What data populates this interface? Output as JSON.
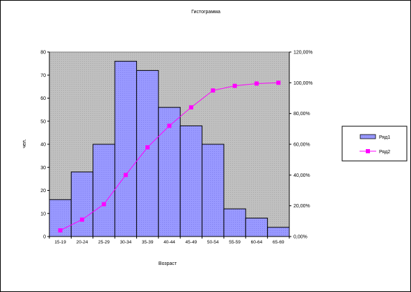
{
  "chart_data": {
    "type": "bar",
    "title": "Гистограмма",
    "xlabel": "Возраст",
    "ylabel": "чел.",
    "categories": [
      "15-19",
      "20-24",
      "25-29",
      "30-34",
      "35-39",
      "40-44",
      "45-49",
      "50-54",
      "55-59",
      "60-64",
      "65-69"
    ],
    "ylim": [
      0,
      80
    ],
    "yticks": [
      "0",
      "10",
      "20",
      "30",
      "40",
      "50",
      "60",
      "70",
      "80"
    ],
    "y2lim": [
      0,
      120
    ],
    "y2ticks": [
      "0,00%",
      "20,00%",
      "40,00%",
      "60,00%",
      "80,00%",
      "100,00%",
      "120,00%"
    ],
    "series": [
      {
        "name": "Ряд1",
        "type": "bar",
        "axis": "left",
        "color": "#9999ff",
        "values": [
          16,
          28,
          40,
          76,
          72,
          56,
          48,
          40,
          12,
          8,
          4
        ]
      },
      {
        "name": "Ряд2",
        "type": "line",
        "axis": "right",
        "color": "#ff00ff",
        "values": [
          4,
          11,
          21,
          40,
          58,
          72,
          84,
          95,
          98,
          99.5,
          100
        ]
      }
    ],
    "plot_background": "#c0c0c0",
    "grid": false,
    "legend_position": "right"
  }
}
